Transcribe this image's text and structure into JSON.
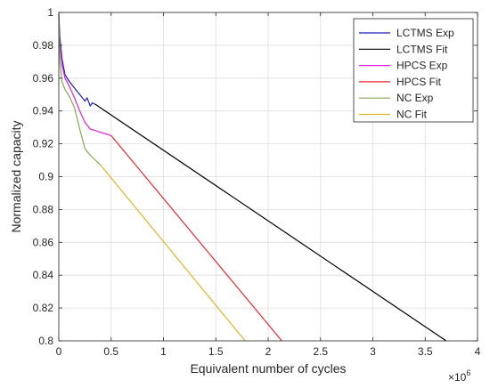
{
  "chart_data": {
    "type": "line",
    "xlabel": "Equivalent number of cycles",
    "ylabel": "Normalized capacity",
    "x_multiplier_label": "×10",
    "x_multiplier_exponent": "6",
    "xlim": [
      0,
      4
    ],
    "ylim": [
      0.8,
      1.0
    ],
    "xticks": [
      0,
      0.5,
      1,
      1.5,
      2,
      2.5,
      3,
      3.5,
      4
    ],
    "xtick_labels": [
      "0",
      "0.5",
      "1",
      "1.5",
      "2",
      "2.5",
      "3",
      "3.5",
      "4"
    ],
    "yticks": [
      0.8,
      0.82,
      0.84,
      0.86,
      0.88,
      0.9,
      0.92,
      0.94,
      0.96,
      0.98,
      1.0
    ],
    "ytick_labels": [
      "0.8",
      "0.82",
      "0.84",
      "0.86",
      "0.88",
      "0.9",
      "0.92",
      "0.94",
      "0.96",
      "0.98",
      "1"
    ],
    "grid": true,
    "legend_position": "top-right",
    "series": [
      {
        "name": "LCTMS Exp",
        "color": "#1f1fb4",
        "x": [
          0,
          0.01,
          0.03,
          0.06,
          0.1,
          0.15,
          0.2,
          0.25,
          0.27,
          0.3,
          0.32,
          0.35
        ],
        "y": [
          0.999,
          0.985,
          0.972,
          0.962,
          0.958,
          0.954,
          0.95,
          0.946,
          0.948,
          0.943,
          0.945,
          0.944
        ]
      },
      {
        "name": "LCTMS Fit",
        "color": "#000000",
        "x": [
          0.35,
          3.7
        ],
        "y": [
          0.944,
          0.8
        ]
      },
      {
        "name": "HPCS Exp",
        "color": "#e020e0",
        "x": [
          0,
          0.01,
          0.03,
          0.06,
          0.1,
          0.15,
          0.2,
          0.25,
          0.3,
          0.35,
          0.4,
          0.45,
          0.5
        ],
        "y": [
          0.998,
          0.98,
          0.968,
          0.96,
          0.955,
          0.948,
          0.94,
          0.933,
          0.929,
          0.928,
          0.927,
          0.926,
          0.925
        ]
      },
      {
        "name": "HPCS Fit",
        "color": "#e8282c",
        "x": [
          0.5,
          2.13
        ],
        "y": [
          0.925,
          0.8
        ]
      },
      {
        "name": "NC Exp",
        "color": "#80a850",
        "x": [
          0,
          0.01,
          0.03,
          0.06,
          0.1,
          0.15,
          0.2,
          0.25,
          0.3,
          0.35,
          0.4
        ],
        "y": [
          0.997,
          0.97,
          0.958,
          0.953,
          0.949,
          0.942,
          0.929,
          0.917,
          0.913,
          0.91,
          0.907
        ]
      },
      {
        "name": "NC Fit",
        "color": "#e0b428",
        "x": [
          0.4,
          1.78
        ],
        "y": [
          0.907,
          0.8
        ]
      }
    ]
  }
}
